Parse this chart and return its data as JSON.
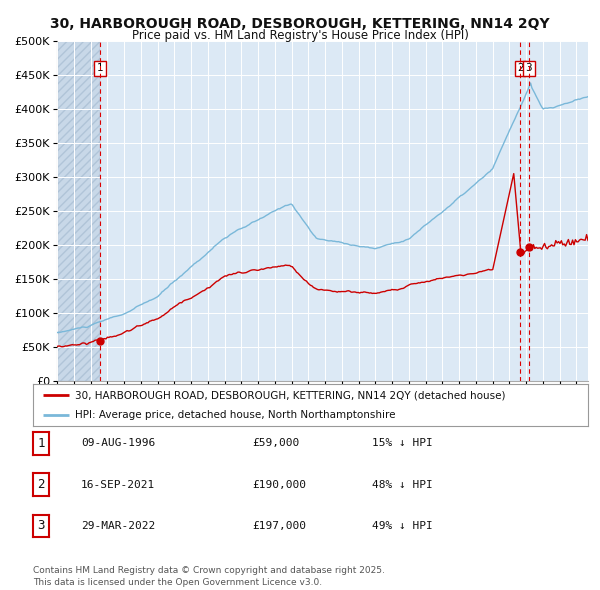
{
  "title": "30, HARBOROUGH ROAD, DESBOROUGH, KETTERING, NN14 2QY",
  "subtitle": "Price paid vs. HM Land Registry's House Price Index (HPI)",
  "title_fontsize": 10,
  "subtitle_fontsize": 8.5,
  "background_color": "#ffffff",
  "plot_bg_color": "#dce9f5",
  "grid_color": "#ffffff",
  "hpi_color": "#7ab8d9",
  "price_color": "#cc0000",
  "ylim": [
    0,
    500000
  ],
  "yticks": [
    0,
    50000,
    100000,
    150000,
    200000,
    250000,
    300000,
    350000,
    400000,
    450000,
    500000
  ],
  "legend_label_price": "30, HARBOROUGH ROAD, DESBOROUGH, KETTERING, NN14 2QY (detached house)",
  "legend_label_hpi": "HPI: Average price, detached house, North Northamptonshire",
  "transaction1_date": "09-AUG-1996",
  "transaction1_price": 59000,
  "transaction1_hpi_pct": "15%",
  "transaction2_date": "16-SEP-2021",
  "transaction2_price": 190000,
  "transaction2_hpi_pct": "48%",
  "transaction3_date": "29-MAR-2022",
  "transaction3_price": 197000,
  "transaction3_hpi_pct": "49%",
  "footnote": "Contains HM Land Registry data © Crown copyright and database right 2025.\nThis data is licensed under the Open Government Licence v3.0.",
  "footnote_fontsize": 6.5,
  "xstart": 1994.0,
  "xend": 2025.7
}
